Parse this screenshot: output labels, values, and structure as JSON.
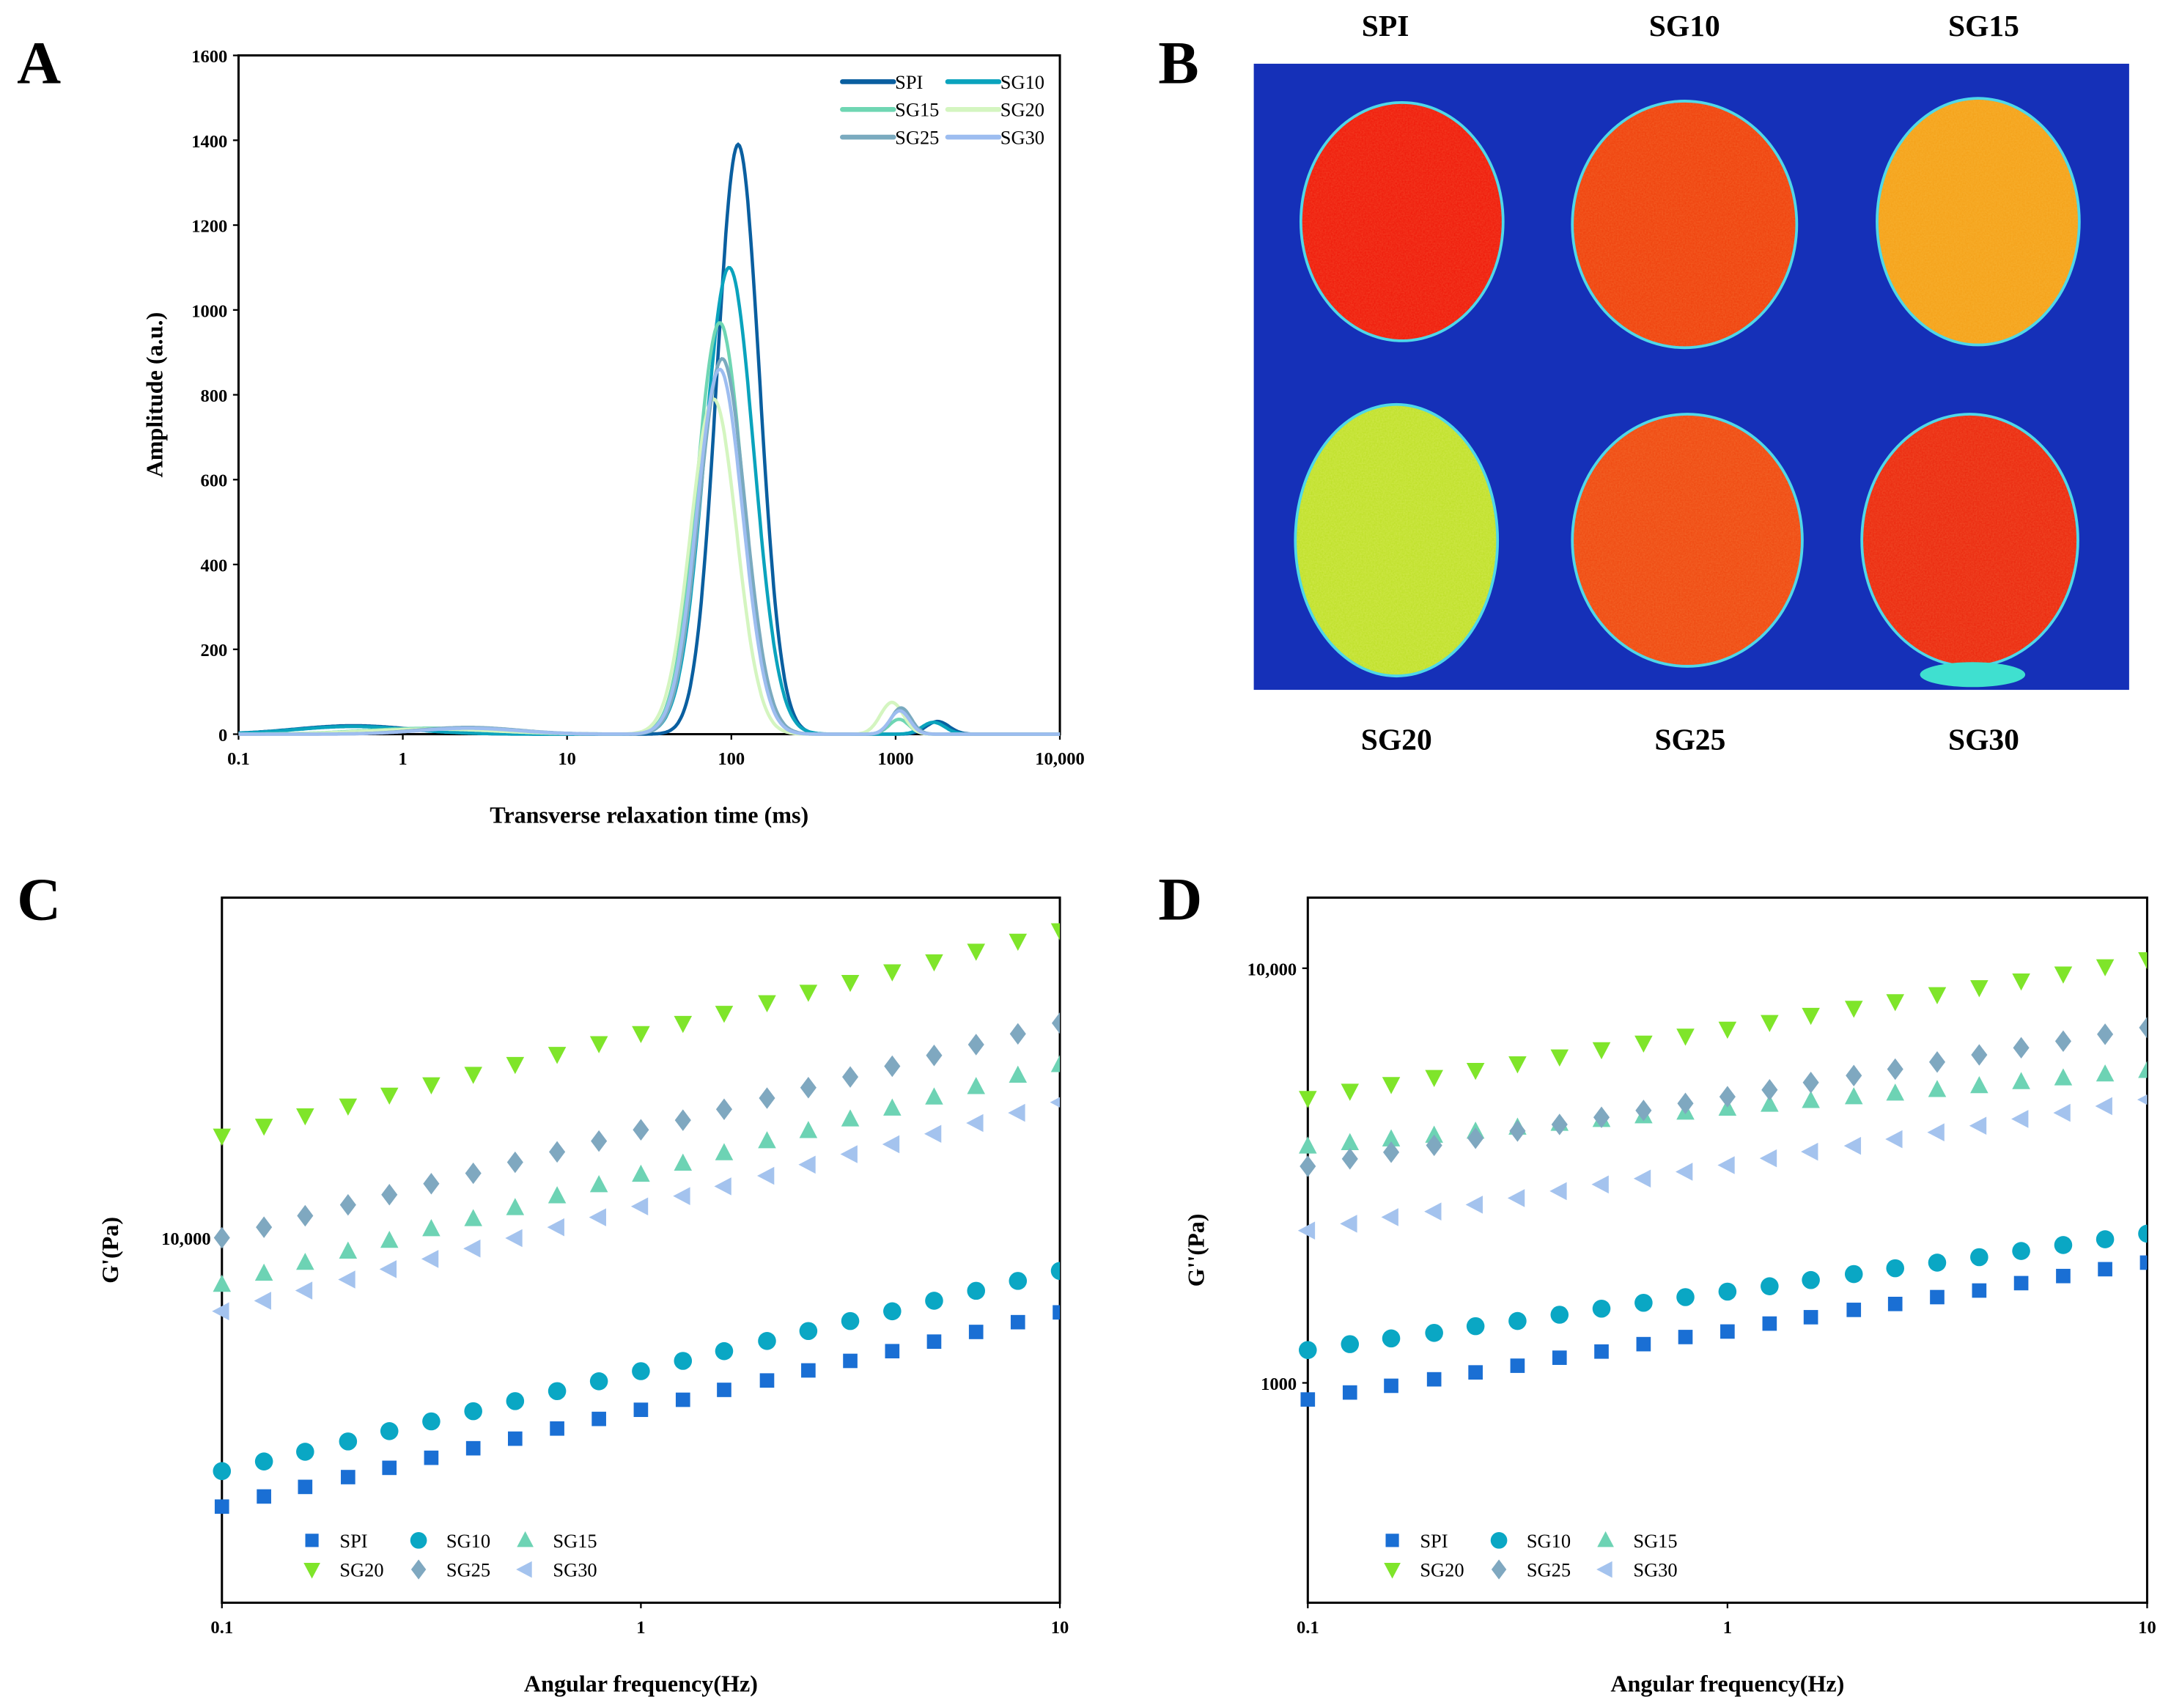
{
  "panel_labels": {
    "a": "A",
    "b": "B",
    "c": "C",
    "d": "D"
  },
  "panel_b": {
    "labels": [
      "SPI",
      "SG10",
      "SG15",
      "SG20",
      "SG25",
      "SG30"
    ],
    "background_color": "#1530b8",
    "sample_colors": [
      "#f01c0c",
      "#f0420e",
      "#f5a21a",
      "#bfe02a",
      "#f04a12",
      "#ec2a10"
    ]
  },
  "chart_data": [
    {
      "id": "A",
      "type": "line",
      "xlabel": "Transverse relaxation time (ms)",
      "ylabel": "Amplitude (a.u.)",
      "xscale": "log",
      "xlim": [
        0.1,
        10000
      ],
      "ylim": [
        0,
        1600
      ],
      "xticks": [
        "0.1",
        "1",
        "10",
        "100",
        "1000",
        "10,000"
      ],
      "xtick_values": [
        0.1,
        1,
        10,
        100,
        1000,
        10000
      ],
      "yticks": [
        "0",
        "200",
        "400",
        "600",
        "800",
        "1000",
        "1200",
        "1400",
        "1600"
      ],
      "ytick_values": [
        0,
        200,
        400,
        600,
        800,
        1000,
        1200,
        1400,
        1600
      ],
      "legend_position": "top-right",
      "series": [
        {
          "name": "SPI",
          "color": "#0a5fa0",
          "peaks": [
            {
              "center_ms": 0.5,
              "amplitude": 20,
              "width_decades": 0.35
            },
            {
              "center_ms": 110,
              "amplitude": 1390,
              "width_decades": 0.13
            },
            {
              "center_ms": 1800,
              "amplitude": 30,
              "width_decades": 0.07
            }
          ]
        },
        {
          "name": "SG10",
          "color": "#0aa3bd",
          "peaks": [
            {
              "center_ms": 0.5,
              "amplitude": 18,
              "width_decades": 0.35
            },
            {
              "center_ms": 97,
              "amplitude": 1100,
              "width_decades": 0.15
            },
            {
              "center_ms": 1700,
              "amplitude": 28,
              "width_decades": 0.07
            }
          ]
        },
        {
          "name": "SG15",
          "color": "#6fd6b3",
          "peaks": [
            {
              "center_ms": 1.5,
              "amplitude": 14,
              "width_decades": 0.4
            },
            {
              "center_ms": 85,
              "amplitude": 970,
              "width_decades": 0.14
            },
            {
              "center_ms": 1050,
              "amplitude": 35,
              "width_decades": 0.06
            }
          ]
        },
        {
          "name": "SG20",
          "color": "#d4f5c0",
          "peaks": [
            {
              "center_ms": 1.5,
              "amplitude": 12,
              "width_decades": 0.4
            },
            {
              "center_ms": 78,
              "amplitude": 790,
              "width_decades": 0.14
            },
            {
              "center_ms": 950,
              "amplitude": 75,
              "width_decades": 0.07
            }
          ]
        },
        {
          "name": "SG25",
          "color": "#7aaabf",
          "peaks": [
            {
              "center_ms": 2.5,
              "amplitude": 16,
              "width_decades": 0.3
            },
            {
              "center_ms": 88,
              "amplitude": 885,
              "width_decades": 0.14
            },
            {
              "center_ms": 1080,
              "amplitude": 62,
              "width_decades": 0.06
            }
          ]
        },
        {
          "name": "SG30",
          "color": "#9dbdf0",
          "peaks": [
            {
              "center_ms": 2.5,
              "amplitude": 14,
              "width_decades": 0.3
            },
            {
              "center_ms": 85,
              "amplitude": 860,
              "width_decades": 0.14
            },
            {
              "center_ms": 1060,
              "amplitude": 55,
              "width_decades": 0.06
            }
          ]
        }
      ]
    },
    {
      "id": "C",
      "type": "scatter",
      "xlabel": "Angular frequency(Hz)",
      "ylabel": "G'(Pa)",
      "xscale": "log",
      "yscale": "log",
      "xlim": [
        0.1,
        10
      ],
      "ylim": [
        1320,
        66000
      ],
      "xticks": [
        "0.1",
        "1",
        "10"
      ],
      "xtick_values": [
        0.1,
        1,
        10
      ],
      "yticks": [
        "10,000"
      ],
      "ytick_values": [
        10000
      ],
      "legend_position": "bottom-left",
      "x": [
        0.1,
        0.126,
        0.158,
        0.2,
        0.251,
        0.316,
        0.398,
        0.501,
        0.631,
        0.794,
        1,
        1.26,
        1.58,
        2,
        2.51,
        3.16,
        3.98,
        5.01,
        6.31,
        7.94,
        10
      ],
      "series": [
        {
          "name": "SPI",
          "marker": "square",
          "color": "#1a6fd4",
          "values": [
            2250,
            2380,
            2510,
            2650,
            2790,
            2950,
            3110,
            3280,
            3470,
            3660,
            3850,
            4070,
            4300,
            4530,
            4790,
            5050,
            5330,
            5620,
            5930,
            6260,
            6610
          ]
        },
        {
          "name": "SG10",
          "marker": "circle",
          "color": "#0aa7c4",
          "values": [
            2740,
            2890,
            3050,
            3230,
            3420,
            3610,
            3820,
            4040,
            4270,
            4510,
            4770,
            5050,
            5330,
            5640,
            5960,
            6300,
            6650,
            7050,
            7450,
            7870,
            8320
          ]
        },
        {
          "name": "SG15",
          "marker": "triangle-up",
          "color": "#6dd3b4",
          "values": [
            7710,
            8200,
            8710,
            9270,
            9840,
            10500,
            11100,
            11800,
            12600,
            13400,
            14200,
            15100,
            16000,
            17100,
            18100,
            19300,
            20500,
            21800,
            23100,
            24600,
            26100
          ]
        },
        {
          "name": "SG20",
          "marker": "triangle-down",
          "color": "#7fe52a",
          "values": [
            17600,
            18600,
            19700,
            20800,
            22100,
            23400,
            24800,
            26200,
            27700,
            29400,
            31100,
            32900,
            34800,
            36900,
            39100,
            41300,
            43800,
            46300,
            49100,
            51900,
            55000
          ]
        },
        {
          "name": "SG25",
          "marker": "diamond",
          "color": "#7fa8c0",
          "values": [
            10000,
            10600,
            11300,
            12000,
            12700,
            13500,
            14300,
            15200,
            16100,
            17100,
            18200,
            19200,
            20400,
            21700,
            23000,
            24400,
            25900,
            27500,
            29200,
            31000,
            32900
          ]
        },
        {
          "name": "SG30",
          "marker": "triangle-left",
          "color": "#a4c3ee",
          "values": [
            6650,
            7050,
            7460,
            7930,
            8400,
            8890,
            9420,
            9980,
            10600,
            11200,
            11900,
            12600,
            13300,
            14100,
            15000,
            15900,
            16800,
            17800,
            18900,
            20000,
            21200
          ]
        }
      ]
    },
    {
      "id": "D",
      "type": "scatter",
      "xlabel": "Angular frequency(Hz)",
      "ylabel": "G''(Pa)",
      "xscale": "log",
      "yscale": "log",
      "xlim": [
        0.1,
        10
      ],
      "ylim": [
        295,
        14800
      ],
      "xticks": [
        "0.1",
        "1",
        "10"
      ],
      "xtick_values": [
        0.1,
        1,
        10
      ],
      "yticks": [
        "1000",
        "10,000"
      ],
      "ytick_values": [
        1000,
        10000
      ],
      "legend_position": "bottom-left",
      "x": [
        0.1,
        0.126,
        0.158,
        0.2,
        0.251,
        0.316,
        0.398,
        0.501,
        0.631,
        0.794,
        1,
        1.26,
        1.58,
        2,
        2.51,
        3.16,
        3.98,
        5.01,
        6.31,
        7.94,
        10
      ],
      "series": [
        {
          "name": "SPI",
          "marker": "square",
          "color": "#1a6fd4",
          "values": [
            912,
            948,
            984,
            1020,
            1060,
            1100,
            1150,
            1190,
            1240,
            1290,
            1330,
            1390,
            1440,
            1500,
            1550,
            1610,
            1670,
            1740,
            1810,
            1880,
            1950
          ]
        },
        {
          "name": "SG10",
          "marker": "circle",
          "color": "#0aa7c4",
          "values": [
            1200,
            1240,
            1280,
            1320,
            1370,
            1410,
            1460,
            1510,
            1560,
            1610,
            1660,
            1710,
            1770,
            1830,
            1890,
            1950,
            2010,
            2080,
            2150,
            2220,
            2290
          ]
        },
        {
          "name": "SG15",
          "marker": "triangle-up",
          "color": "#6dd3b4",
          "values": [
            3720,
            3790,
            3870,
            3950,
            4040,
            4130,
            4220,
            4310,
            4400,
            4490,
            4590,
            4690,
            4790,
            4890,
            4990,
            5090,
            5200,
            5320,
            5430,
            5550,
            5660
          ]
        },
        {
          "name": "SG20",
          "marker": "triangle-down",
          "color": "#7fe52a",
          "values": [
            4860,
            5060,
            5250,
            5460,
            5680,
            5890,
            6120,
            6370,
            6610,
            6870,
            7140,
            7410,
            7710,
            8020,
            8320,
            8650,
            8990,
            9330,
            9700,
            10100,
            10500
          ]
        },
        {
          "name": "SG25",
          "marker": "diamond",
          "color": "#7fa8c0",
          "values": [
            3330,
            3470,
            3600,
            3740,
            3890,
            4050,
            4200,
            4370,
            4540,
            4720,
            4900,
            5090,
            5300,
            5510,
            5710,
            5940,
            6180,
            6430,
            6670,
            6930,
            7190
          ]
        },
        {
          "name": "SG30",
          "marker": "triangle-left",
          "color": "#a4c3ee",
          "values": [
            2330,
            2420,
            2510,
            2590,
            2690,
            2790,
            2900,
            3010,
            3110,
            3230,
            3350,
            3480,
            3610,
            3730,
            3870,
            4020,
            4170,
            4330,
            4480,
            4650,
            4820
          ]
        }
      ]
    }
  ]
}
